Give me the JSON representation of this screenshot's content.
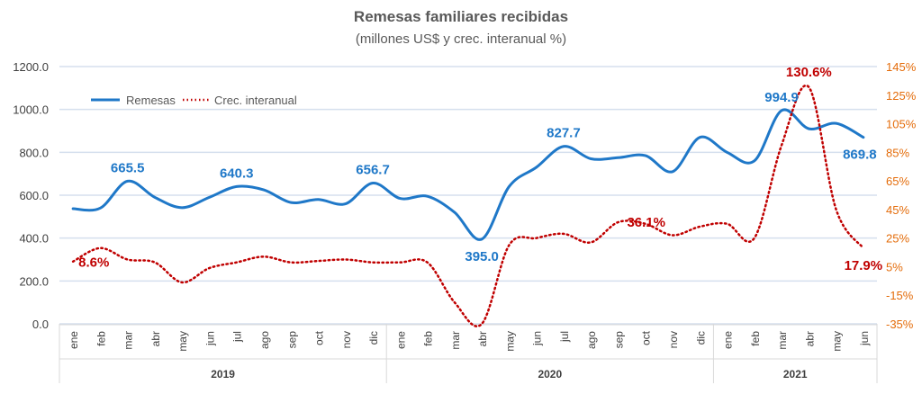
{
  "chart_data": {
    "type": "line",
    "title": "Remesas familiares recibidas",
    "subtitle": "(millones US$ y crec. interanual %)",
    "categories": [
      "ene",
      "feb",
      "mar",
      "abr",
      "may",
      "jun",
      "jul",
      "ago",
      "sep",
      "oct",
      "nov",
      "dic",
      "ene",
      "feb",
      "mar",
      "abr",
      "may",
      "jun",
      "jul",
      "ago",
      "sep",
      "oct",
      "nov",
      "dic",
      "ene",
      "feb",
      "mar",
      "abr",
      "may",
      "jun"
    ],
    "years": [
      {
        "label": "2019",
        "count": 12
      },
      {
        "label": "2020",
        "count": 12
      },
      {
        "label": "2021",
        "count": 6
      }
    ],
    "left_axis": {
      "min": 0,
      "max": 1200,
      "step": 200,
      "ticks": [
        "0.0",
        "200.0",
        "400.0",
        "600.0",
        "800.0",
        "1000.0",
        "1200.0"
      ]
    },
    "right_axis": {
      "min": -35,
      "max": 145,
      "step": 20,
      "ticks": [
        "-35%",
        "-15%",
        "5%",
        "25%",
        "45%",
        "65%",
        "85%",
        "105%",
        "125%",
        "145%"
      ]
    },
    "legend_position": "top-left",
    "grid": true,
    "series": [
      {
        "name": "Remesas",
        "axis": "left",
        "style": "solid",
        "color": "#1F78C8",
        "values": [
          537,
          540,
          665.5,
          590,
          542,
          590,
          640.3,
          625,
          566,
          580,
          560,
          656.7,
          585,
          595,
          520,
          395.0,
          640,
          730,
          827.7,
          770,
          775,
          785,
          710,
          870,
          800,
          760,
          994.9,
          910,
          935,
          869.8
        ],
        "labels": {
          "2": "665.5",
          "6": "640.3",
          "11": "656.7",
          "15": "395.0",
          "18": "827.7",
          "26": "994.9",
          "29": "869.8"
        }
      },
      {
        "name": "Crec. interanual",
        "axis": "right",
        "style": "dotted",
        "color": "#C00000",
        "values": [
          8.6,
          18,
          10,
          8,
          -6,
          4,
          8,
          12,
          8,
          9,
          10,
          8,
          8,
          8,
          -20,
          -35,
          20,
          25,
          28,
          22,
          36.1,
          35,
          27,
          33,
          35,
          25,
          90,
          130.6,
          45,
          17.9
        ],
        "labels": {
          "0": "8.6%",
          "20": "36.1%",
          "27": "130.6%",
          "29": "17.9%"
        }
      }
    ]
  }
}
